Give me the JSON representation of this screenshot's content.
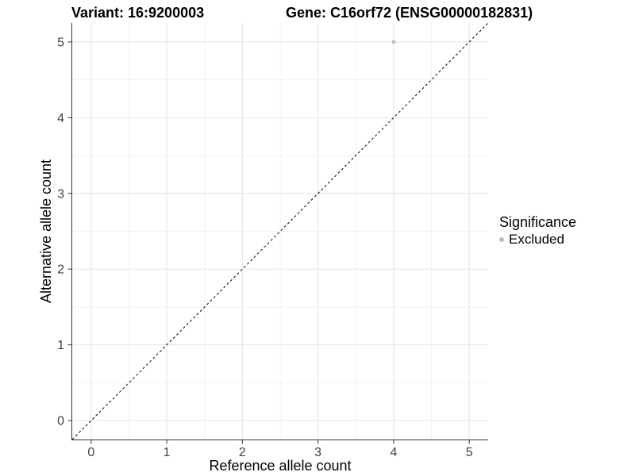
{
  "header": {
    "variant_title": "Variant: 16:9200003",
    "gene_title": "Gene: C16orf72 (ENSG00000182831)"
  },
  "legend": {
    "title": "Significance",
    "items": [
      {
        "label": "Excluded",
        "color": "#bdbdbd"
      }
    ]
  },
  "chart_data": {
    "type": "scatter",
    "title": "Variant: 16:9200003   Gene: C16orf72 (ENSG00000182831)",
    "xlabel": "Reference allele count",
    "ylabel": "Alternative allele count",
    "xlim": [
      -0.25,
      5.25
    ],
    "ylim": [
      -0.25,
      5.25
    ],
    "x_ticks": [
      0,
      1,
      2,
      3,
      4,
      5
    ],
    "y_ticks": [
      0,
      1,
      2,
      3,
      4,
      5
    ],
    "x_minor": [
      0.5,
      1.5,
      2.5,
      3.5,
      4.5
    ],
    "y_minor": [
      0.5,
      1.5,
      2.5,
      3.5,
      4.5
    ],
    "grid": true,
    "legend_position": "right",
    "points": [
      {
        "x": 4,
        "y": 5,
        "series": "Excluded",
        "color": "#bdbdbd"
      }
    ],
    "reference_line": {
      "type": "abline",
      "intercept": 0,
      "slope": 1,
      "style": "dashed",
      "color": "#000000"
    },
    "style": {
      "grid_major": "#e4e4e4",
      "grid_minor": "#f1f1f1",
      "axis_line": "#333333",
      "tick_text": "#404040",
      "title_text": "#000000",
      "panel_bg": "#ffffff"
    }
  }
}
